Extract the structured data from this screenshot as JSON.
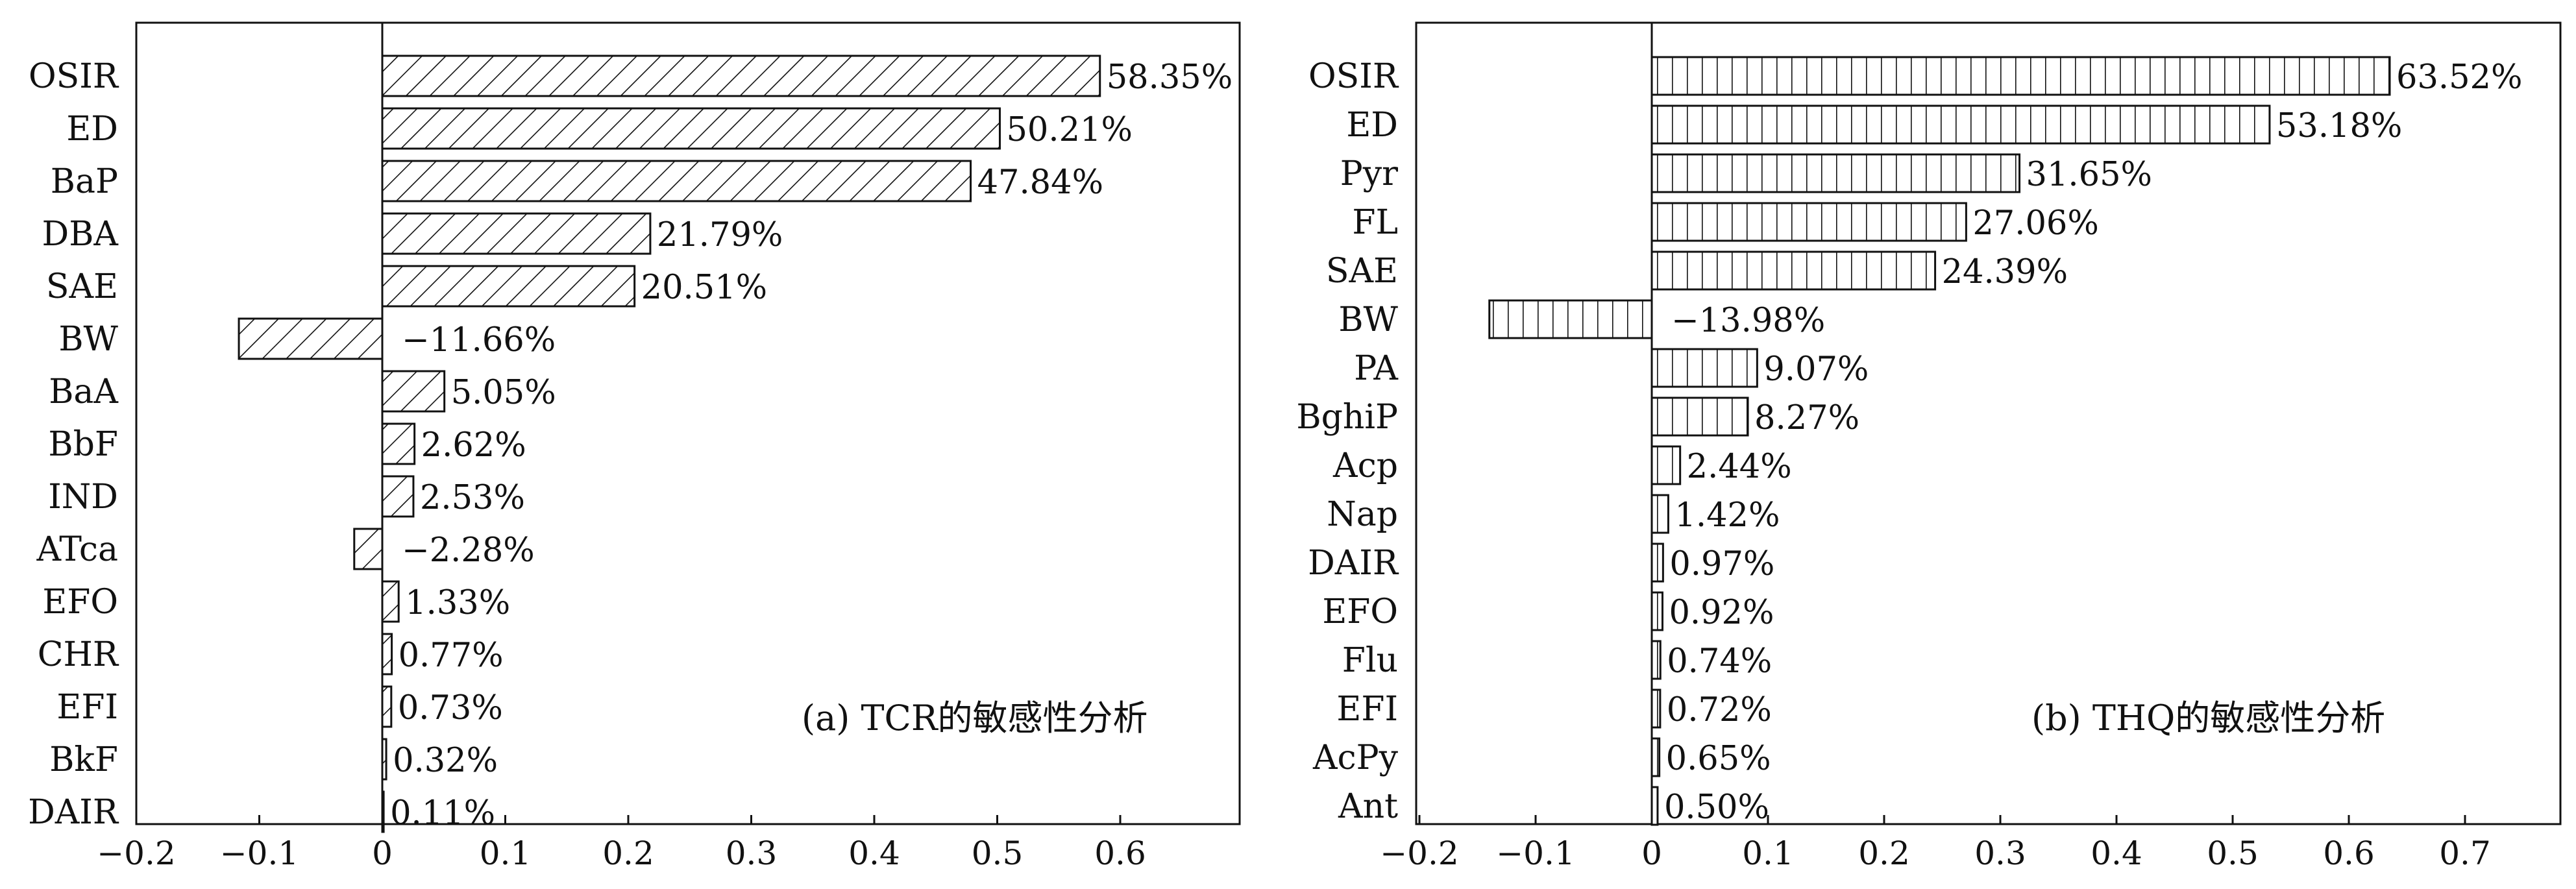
{
  "chart_data": [
    {
      "type": "bar",
      "orientation": "horizontal",
      "caption": "(a) TCR的敏感性分析",
      "categories": [
        "OSIR",
        "ED",
        "BaP",
        "DBA",
        "SAE",
        "BW",
        "BaA",
        "BbF",
        "IND",
        "ATca",
        "EFO",
        "CHR",
        "EFI",
        "BkF",
        "DAIR"
      ],
      "values": [
        0.5835,
        0.5021,
        0.4784,
        0.2179,
        0.2051,
        -0.1166,
        0.0505,
        0.0262,
        0.0253,
        -0.0228,
        0.0133,
        0.0077,
        0.0073,
        0.0032,
        0.0011
      ],
      "value_labels": [
        "58.35%",
        "50.21%",
        "47.84%",
        "21.79%",
        "20.51%",
        "−11.66%",
        "5.05%",
        "2.62%",
        "2.53%",
        "−2.28%",
        "1.33%",
        "0.77%",
        "0.73%",
        "0.32%",
        "0.11%"
      ],
      "xlim": [
        -0.2,
        0.7
      ],
      "xticks": [
        "−0.2",
        "−0.1",
        "0",
        "0.1",
        "0.2",
        "0.3",
        "0.4",
        "0.5",
        "0.6"
      ],
      "hatch": "diagonal"
    },
    {
      "type": "bar",
      "orientation": "horizontal",
      "caption": "(b) THQ的敏感性分析",
      "categories": [
        "OSIR",
        "ED",
        "Pyr",
        "FL",
        "SAE",
        "BW",
        "PA",
        "BghiP",
        "Acp",
        "Nap",
        "DAIR",
        "EFO",
        "Flu",
        "EFI",
        "AcPy",
        "Ant"
      ],
      "values": [
        0.6352,
        0.5318,
        0.3165,
        0.2706,
        0.2439,
        -0.1398,
        0.0907,
        0.0827,
        0.0244,
        0.0142,
        0.0097,
        0.0092,
        0.0074,
        0.0072,
        0.0065,
        0.005
      ],
      "value_labels": [
        "63.52%",
        "53.18%",
        "31.65%",
        "27.06%",
        "24.39%",
        "−13.98%",
        "9.07%",
        "8.27%",
        "2.44%",
        "1.42%",
        "0.97%",
        "0.92%",
        "0.74%",
        "0.72%",
        "0.65%",
        "0.50%"
      ],
      "xlim": [
        -0.2,
        0.75
      ],
      "xticks": [
        "−0.2",
        "−0.1",
        "0",
        "0.1",
        "0.2",
        "0.3",
        "0.4",
        "0.5",
        "0.6",
        "0.7"
      ],
      "hatch": "vertical"
    }
  ]
}
